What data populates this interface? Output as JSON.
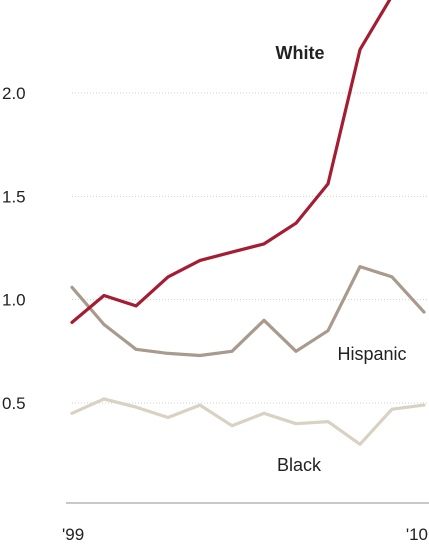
{
  "chart_data": {
    "type": "line",
    "x": [
      1999,
      2000,
      2001,
      2002,
      2003,
      2004,
      2005,
      2006,
      2007,
      2008,
      2009,
      2010
    ],
    "x_tick_labels": [
      "'99",
      "'10"
    ],
    "y_tick_labels": [
      "2.0",
      "1.5",
      "1.0",
      "0.5"
    ],
    "y_ticks": [
      2.0,
      1.5,
      1.0,
      0.5
    ],
    "ylim": [
      0.0,
      2.45
    ],
    "xlim": [
      1999,
      2010
    ],
    "grid": true,
    "series": [
      {
        "name": "White",
        "color": "#a51d32",
        "label_bold": true,
        "values": [
          0.89,
          1.02,
          0.97,
          1.11,
          1.19,
          1.23,
          1.27,
          1.37,
          1.56,
          2.21,
          2.47,
          null
        ]
      },
      {
        "name": "Hispanic",
        "color": "#a89a8c",
        "label_bold": false,
        "values": [
          1.06,
          0.88,
          0.76,
          0.74,
          0.73,
          0.75,
          0.9,
          0.75,
          0.85,
          1.16,
          1.11,
          0.94
        ]
      },
      {
        "name": "Black",
        "color": "#d9d2c3",
        "label_bold": false,
        "values": [
          0.45,
          0.52,
          0.48,
          0.43,
          0.49,
          0.39,
          0.45,
          0.4,
          0.41,
          0.3,
          0.47,
          0.49
        ]
      }
    ]
  }
}
